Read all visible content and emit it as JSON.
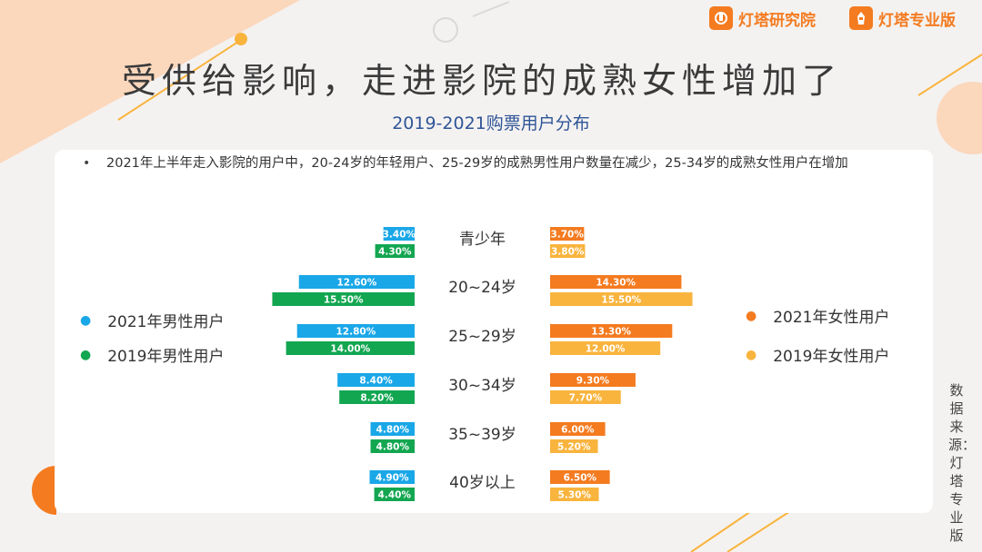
{
  "header": {
    "brand1": "灯塔研究院",
    "brand2": "灯塔专业版",
    "title": "受供给影响，走进影院的成熟女性增加了",
    "subtitle": "2019-2021购票用户分布",
    "note": "2021年上半年走入影院的用户中，20-24岁的年轻用户、25-29岁的成熟男性用户数量在减少，25-34岁的成熟女性用户在增加",
    "source": "数据来源：灯塔专业版"
  },
  "colors": {
    "male2021": "#1aa7e8",
    "male2019": "#13a651",
    "female2021": "#f47b20",
    "female2019": "#f9b43e",
    "accent": "#f47b20"
  },
  "legend": {
    "male2021": "2021年男性用户",
    "male2019": "2019年男性用户",
    "female2021": "2021年女性用户",
    "female2019": "2019年女性用户"
  },
  "chart_data": {
    "type": "bar",
    "orientation": "horizontal-butterfly",
    "categories": [
      "青少年",
      "20~24岁",
      "25~29岁",
      "30~34岁",
      "35~39岁",
      "40岁以上"
    ],
    "series": [
      {
        "name": "2021年男性用户",
        "side": "left",
        "values": [
          3.4,
          12.6,
          12.8,
          8.4,
          4.8,
          4.9
        ]
      },
      {
        "name": "2019年男性用户",
        "side": "left",
        "values": [
          4.3,
          15.5,
          14.0,
          8.2,
          4.8,
          4.4
        ]
      },
      {
        "name": "2021年女性用户",
        "side": "right",
        "values": [
          3.7,
          14.3,
          13.3,
          9.3,
          6.0,
          6.5
        ]
      },
      {
        "name": "2019年女性用户",
        "side": "right",
        "values": [
          3.8,
          15.5,
          12.0,
          7.7,
          5.2,
          5.3
        ]
      }
    ],
    "value_labels": {
      "male2021": [
        "3.40%",
        "12.60%",
        "12.80%",
        "8.40%",
        "4.80%",
        "4.90%"
      ],
      "male2019": [
        "4.30%",
        "15.50%",
        "14.00%",
        "8.20%",
        "4.80%",
        "4.40%"
      ],
      "female2021": [
        "3.70%",
        "14.30%",
        "13.30%",
        "9.30%",
        "6.00%",
        "6.50%"
      ],
      "female2019": [
        "3.80%",
        "15.50%",
        "12.00%",
        "7.70%",
        "5.20%",
        "5.30%"
      ]
    },
    "unit": "%"
  }
}
